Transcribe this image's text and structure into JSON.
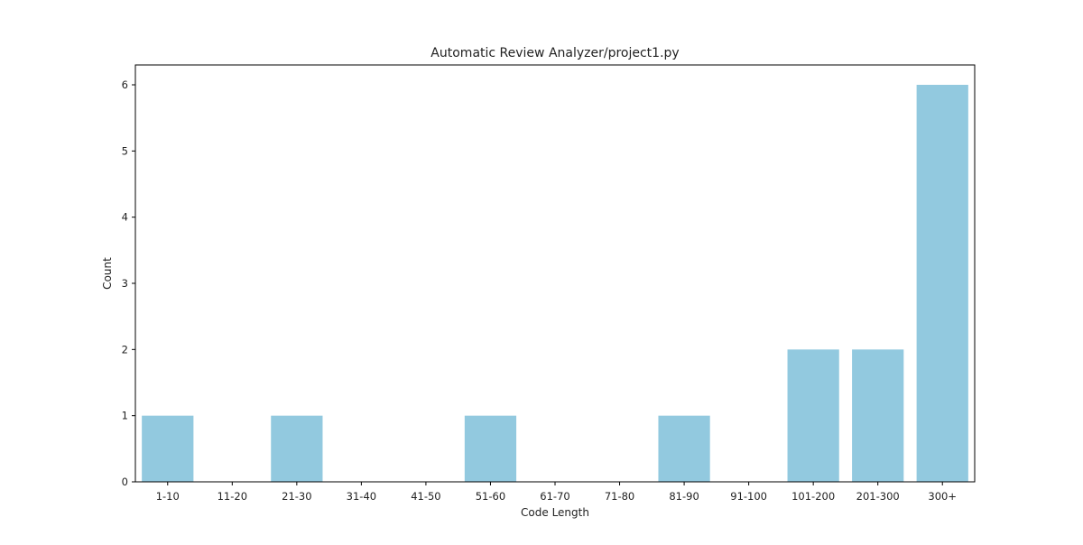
{
  "chart_data": {
    "type": "bar",
    "title": "Automatic Review Analyzer/project1.py",
    "xlabel": "Code Length",
    "ylabel": "Count",
    "categories": [
      "1-10",
      "11-20",
      "21-30",
      "31-40",
      "41-50",
      "51-60",
      "61-70",
      "71-80",
      "81-90",
      "91-100",
      "101-200",
      "201-300",
      "300+"
    ],
    "values": [
      1,
      0,
      1,
      0,
      0,
      1,
      0,
      0,
      1,
      0,
      2,
      2,
      6
    ],
    "yticks": [
      "0",
      "1",
      "2",
      "3",
      "4",
      "5",
      "6"
    ],
    "ylim": [
      0,
      6.3
    ],
    "grid": false,
    "bar_color": "#92c9df"
  }
}
